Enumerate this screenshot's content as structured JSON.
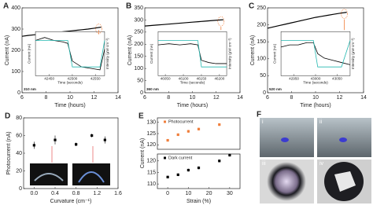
{
  "chart_data": [
    {
      "type": "line",
      "panel": "A",
      "xlabel": "Time (hours)",
      "ylabel": "Current (nA)",
      "xlim": [
        6,
        14
      ],
      "xticks": [
        6,
        8,
        10,
        12,
        14
      ],
      "ylim": [
        0,
        400
      ],
      "yticks": [
        0,
        100,
        200,
        300,
        400
      ],
      "x": [
        6,
        6.5,
        7,
        7.5,
        8,
        8.5,
        9,
        9.5,
        10,
        10.5,
        11,
        11.5,
        12,
        12.6
      ],
      "series": [
        {
          "color": "#000000",
          "values": [
            266,
            270,
            273,
            276,
            279,
            282,
            285,
            288,
            291,
            294,
            297,
            300,
            304,
            309
          ]
        }
      ],
      "inset": {
        "type": "line",
        "label": "310 nm",
        "xlabel": "Time (seconds)",
        "ylabel": "Current (nA)",
        "y2label": "Intensity (μW cm⁻²)",
        "xlim": [
          42420,
          42570
        ],
        "xticks": [
          42450,
          42500,
          42550
        ],
        "ylim": [
          290,
          320
        ],
        "y2lim": [
          0,
          100
        ],
        "x": [
          42420,
          42440,
          42460,
          42480,
          42490,
          42500,
          42520,
          42540,
          42560,
          42570
        ],
        "series": [
          {
            "color": "#000000",
            "values": [
              314,
              316,
              314,
              313,
              312,
              300,
              296,
              295,
              294,
              308
            ]
          },
          {
            "color": "#25b8b0",
            "axis": "y2",
            "values": [
              80,
              80,
              80,
              80,
              80,
              20,
              20,
              20,
              20,
              80
            ]
          }
        ]
      }
    },
    {
      "type": "line",
      "panel": "B",
      "xlabel": "Time (hours)",
      "ylabel": "Current (nA)",
      "xlim": [
        6,
        14
      ],
      "xticks": [
        6,
        8,
        10,
        12,
        14
      ],
      "ylim": [
        0,
        350
      ],
      "yticks": [
        0,
        50,
        100,
        150,
        200,
        250,
        300,
        350
      ],
      "x": [
        6,
        6.5,
        7,
        7.5,
        8,
        8.5,
        9,
        9.5,
        10,
        10.5,
        11,
        11.5,
        12,
        12.6
      ],
      "series": [
        {
          "color": "#000000",
          "values": [
            275,
            277,
            279,
            281,
            283,
            285,
            287,
            289,
            291,
            293,
            295,
            297,
            299,
            301
          ]
        }
      ],
      "inset": {
        "type": "line",
        "label": "360 nm",
        "xlabel": "Time (seconds)",
        "ylabel": "Current (nA)",
        "y2label": "Intensity (μW cm⁻²)",
        "xlim": [
          46030,
          46220
        ],
        "xticks": [
          46050,
          46100,
          46150,
          46200
        ],
        "ylim": [
          200,
          240
        ],
        "y2lim": [
          0,
          100
        ],
        "x": [
          46030,
          46060,
          46090,
          46120,
          46140,
          46150,
          46170,
          46190,
          46210,
          46220
        ],
        "series": [
          {
            "color": "#000000",
            "values": [
              228,
              229,
              228,
              229,
              228,
              214,
              212,
              211,
              211,
              211
            ]
          },
          {
            "color": "#25b8b0",
            "axis": "y2",
            "values": [
              80,
              80,
              80,
              80,
              80,
              20,
              20,
              20,
              20,
              20
            ]
          }
        ]
      }
    },
    {
      "type": "line",
      "panel": "C",
      "xlabel": "Time (hours)",
      "ylabel": "Current (nA)",
      "xlim": [
        6,
        14
      ],
      "xticks": [
        6,
        8,
        10,
        12,
        14
      ],
      "ylim": [
        0,
        250
      ],
      "yticks": [
        0,
        50,
        100,
        150,
        200,
        250
      ],
      "x": [
        6,
        6.5,
        7,
        7.5,
        8,
        8.5,
        9,
        9.5,
        10,
        10.5,
        11,
        11.5,
        12,
        12.6
      ],
      "series": [
        {
          "color": "#000000",
          "values": [
            190,
            194,
            198,
            202,
            206,
            210,
            214,
            218,
            222,
            225,
            228,
            231,
            234,
            237
          ]
        }
      ],
      "inset": {
        "type": "line",
        "label": "520 nm",
        "xlabel": "Time (seconds)",
        "ylabel": "Current (nA)",
        "y2label": "Intensity (μW cm⁻²)",
        "xlim": [
          42920,
          43080
        ],
        "xticks": [
          42950,
          43000,
          43050
        ],
        "ylim": [
          140,
          160
        ],
        "y2lim": [
          0,
          100
        ],
        "x": [
          42920,
          42940,
          42960,
          42980,
          42995,
          43005,
          43020,
          43040,
          43060,
          43080
        ],
        "series": [
          {
            "color": "#000000",
            "values": [
              153,
              154,
              154,
              155,
              155,
              150,
              148,
              147,
              146,
              145
            ]
          },
          {
            "color": "#25b8b0",
            "axis": "y2",
            "values": [
              80,
              80,
              80,
              80,
              80,
              20,
              20,
              20,
              20,
              80
            ]
          }
        ]
      }
    },
    {
      "type": "scatter",
      "panel": "D",
      "xlabel": "Curvature (cm⁻¹)",
      "ylabel": "Photocurrent (nA)",
      "xlim": [
        -0.2,
        1.6
      ],
      "xticks": [
        {
          "value": 0,
          "label": "0.0"
        },
        0.4,
        0.8,
        1.2,
        1.6
      ],
      "ylim": [
        0,
        80
      ],
      "yticks": [
        0,
        20,
        40,
        60,
        80
      ],
      "x": [
        0,
        0.4,
        0.8,
        1.1,
        1.35
      ],
      "series": [
        {
          "color": "#000000",
          "values": [
            49,
            55,
            50,
            60,
            55
          ],
          "errors": [
            4,
            5,
            2,
            2,
            4
          ]
        }
      ]
    },
    {
      "type": "scatter",
      "panel": "E",
      "ylabel": "Current (nA)",
      "xlim": [
        -5,
        35
      ],
      "ylim": [
        118,
        132
      ],
      "yticks": [
        120,
        125,
        130
      ],
      "x": [
        0,
        5,
        10,
        15,
        25
      ],
      "series": [
        {
          "name": "Photocurrent",
          "color": "#f07f3c",
          "values": [
            122,
            124.5,
            126,
            127,
            129
          ],
          "errors": [
            0.6,
            0.6,
            0.6,
            0.6,
            0.6
          ]
        }
      ]
    },
    {
      "type": "scatter",
      "xlabel": "Strain (%)",
      "xlim": [
        -5,
        35
      ],
      "xticks": [
        0,
        10,
        20,
        30
      ],
      "ylim": [
        108,
        123
      ],
      "yticks": [
        110,
        115,
        120
      ],
      "x": [
        0,
        5,
        10,
        15,
        25,
        30
      ],
      "series": [
        {
          "name": "Dark current",
          "color": "#000000",
          "values": [
            113,
            114,
            116,
            117,
            120,
            122.5
          ],
          "errors": [
            0.6,
            0.6,
            0.6,
            0.6,
            0.6,
            0.6
          ]
        }
      ]
    }
  ],
  "photos": {
    "panel": "F",
    "labels": [
      "i",
      "ii",
      "iii",
      "iv"
    ]
  }
}
